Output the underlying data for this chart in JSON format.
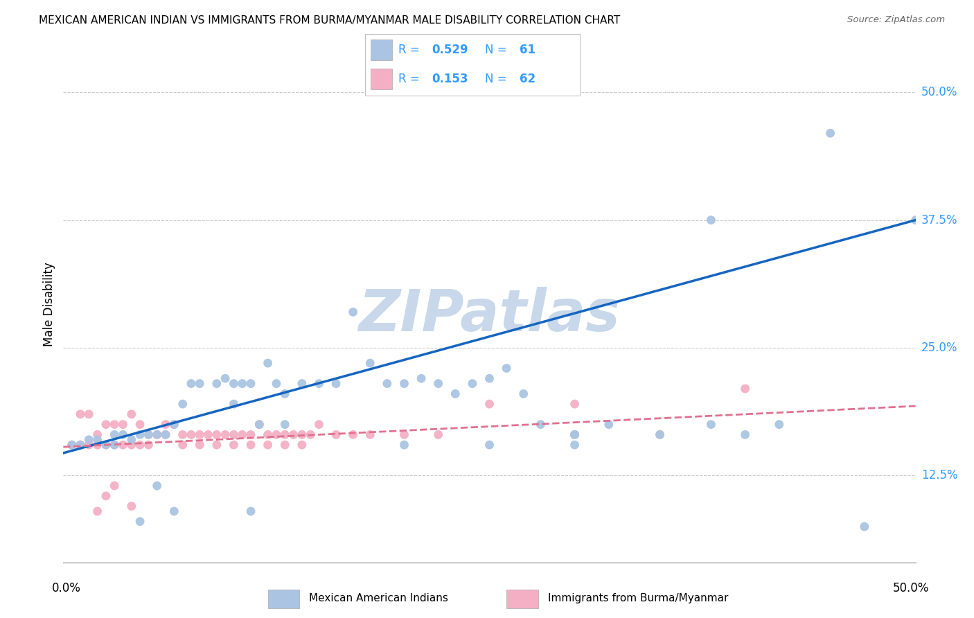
{
  "title": "MEXICAN AMERICAN INDIAN VS IMMIGRANTS FROM BURMA/MYANMAR MALE DISABILITY CORRELATION CHART",
  "source": "Source: ZipAtlas.com",
  "ylabel": "Male Disability",
  "ytick_labels": [
    "12.5%",
    "25.0%",
    "37.5%",
    "50.0%"
  ],
  "ytick_values": [
    0.125,
    0.25,
    0.375,
    0.5
  ],
  "xlim": [
    0.0,
    0.5
  ],
  "ylim": [
    0.04,
    0.545
  ],
  "r_blue": "0.529",
  "n_blue": "61",
  "r_pink": "0.153",
  "n_pink": "62",
  "blue_color": "#aac4e2",
  "pink_color": "#f4afc4",
  "blue_line_color": "#1565c0",
  "pink_line_color": "#e07090",
  "legend_text_color": "#3399ff",
  "watermark": "ZIPatlas",
  "watermark_color": "#c8d8ea",
  "blue_scatter_x": [
    0.005,
    0.01,
    0.015,
    0.02,
    0.025,
    0.03,
    0.03,
    0.035,
    0.04,
    0.045,
    0.05,
    0.055,
    0.06,
    0.065,
    0.07,
    0.075,
    0.08,
    0.09,
    0.095,
    0.1,
    0.1,
    0.105,
    0.11,
    0.115,
    0.12,
    0.125,
    0.13,
    0.14,
    0.15,
    0.16,
    0.17,
    0.18,
    0.19,
    0.2,
    0.21,
    0.22,
    0.23,
    0.24,
    0.25,
    0.26,
    0.27,
    0.28,
    0.3,
    0.32,
    0.35,
    0.38,
    0.4,
    0.42,
    0.045,
    0.055,
    0.065,
    0.11,
    0.13,
    0.2,
    0.25,
    0.3,
    0.38,
    0.45,
    0.3,
    0.5,
    0.47
  ],
  "blue_scatter_y": [
    0.155,
    0.155,
    0.16,
    0.16,
    0.155,
    0.155,
    0.165,
    0.165,
    0.16,
    0.165,
    0.165,
    0.165,
    0.165,
    0.175,
    0.195,
    0.215,
    0.215,
    0.215,
    0.22,
    0.215,
    0.195,
    0.215,
    0.215,
    0.175,
    0.235,
    0.215,
    0.205,
    0.215,
    0.215,
    0.215,
    0.285,
    0.235,
    0.215,
    0.215,
    0.22,
    0.215,
    0.205,
    0.215,
    0.22,
    0.23,
    0.205,
    0.175,
    0.165,
    0.175,
    0.165,
    0.175,
    0.165,
    0.175,
    0.08,
    0.115,
    0.09,
    0.09,
    0.175,
    0.155,
    0.155,
    0.155,
    0.375,
    0.46,
    0.165,
    0.375,
    0.075
  ],
  "pink_scatter_x": [
    0.005,
    0.01,
    0.01,
    0.015,
    0.015,
    0.02,
    0.02,
    0.025,
    0.025,
    0.03,
    0.03,
    0.035,
    0.035,
    0.04,
    0.04,
    0.045,
    0.045,
    0.05,
    0.055,
    0.06,
    0.065,
    0.07,
    0.075,
    0.08,
    0.085,
    0.09,
    0.095,
    0.1,
    0.105,
    0.11,
    0.115,
    0.12,
    0.125,
    0.13,
    0.135,
    0.14,
    0.145,
    0.15,
    0.16,
    0.17,
    0.18,
    0.2,
    0.22,
    0.25,
    0.3,
    0.35,
    0.02,
    0.025,
    0.03,
    0.04,
    0.05,
    0.06,
    0.07,
    0.08,
    0.09,
    0.1,
    0.11,
    0.12,
    0.13,
    0.14,
    0.3,
    0.4
  ],
  "pink_scatter_y": [
    0.155,
    0.155,
    0.185,
    0.155,
    0.185,
    0.155,
    0.165,
    0.155,
    0.175,
    0.155,
    0.175,
    0.155,
    0.175,
    0.155,
    0.185,
    0.155,
    0.175,
    0.165,
    0.165,
    0.165,
    0.175,
    0.165,
    0.165,
    0.165,
    0.165,
    0.165,
    0.165,
    0.165,
    0.165,
    0.165,
    0.175,
    0.165,
    0.165,
    0.165,
    0.165,
    0.165,
    0.165,
    0.175,
    0.165,
    0.165,
    0.165,
    0.165,
    0.165,
    0.195,
    0.165,
    0.165,
    0.09,
    0.105,
    0.115,
    0.095,
    0.155,
    0.175,
    0.155,
    0.155,
    0.155,
    0.155,
    0.155,
    0.155,
    0.155,
    0.155,
    0.195,
    0.21
  ],
  "blue_line_x0": 0.0,
  "blue_line_x1": 0.5,
  "blue_line_y0": 0.147,
  "blue_line_y1": 0.375,
  "pink_line_x0": 0.0,
  "pink_line_x1": 0.5,
  "pink_line_y0": 0.153,
  "pink_line_y1": 0.193
}
